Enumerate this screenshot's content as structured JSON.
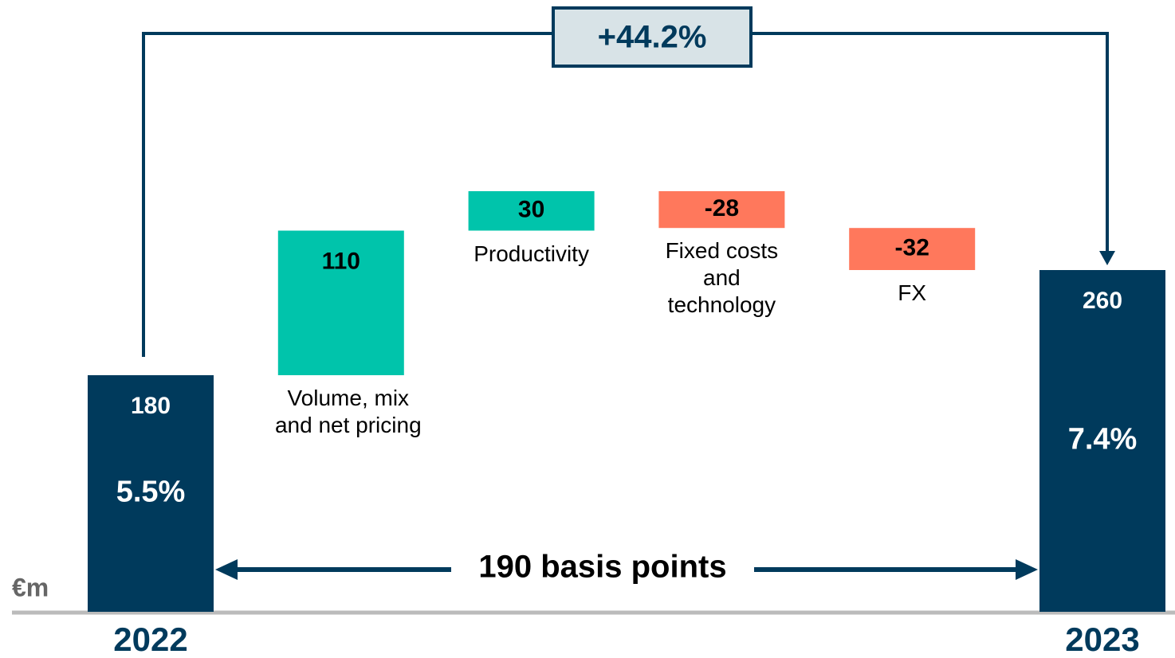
{
  "chart_data": {
    "type": "waterfall",
    "unit": "€m",
    "categories": [
      "2022",
      "Volume, mix and net pricing",
      "Productivity",
      "Fixed costs and technology",
      "FX",
      "2023"
    ],
    "values": [
      180,
      110,
      30,
      -28,
      -32,
      260
    ],
    "measure": [
      "total",
      "relative",
      "relative",
      "relative",
      "relative",
      "total"
    ],
    "colors": {
      "total": "#003a5c",
      "increase": "#00c4ab",
      "decrease": "#ff785c"
    },
    "margins": [
      "5.5%",
      "7.4%"
    ],
    "growth_label": "+44.2%",
    "margin_change_label": "190 basis points"
  }
}
